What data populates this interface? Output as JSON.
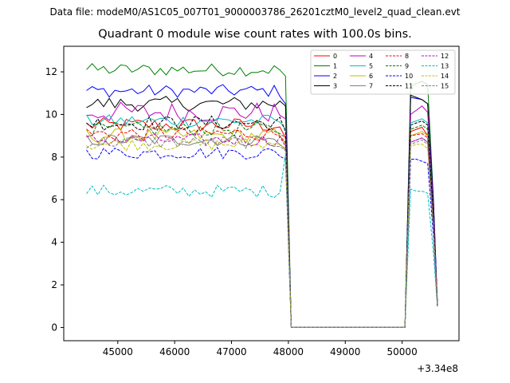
{
  "suptitle": "Data file: modeM0/AS1C05_007T01_9000003786_26201cztM0_level2_quad_clean.evt",
  "chart_data": {
    "type": "line",
    "title": "Quadrant 0 module wise count rates with 100.0s bins.",
    "xlabel": "",
    "ylabel": "",
    "x_offset_label": "+3.34e8",
    "xlim": [
      44050,
      51000
    ],
    "ylim": [
      -0.62,
      13.2
    ],
    "xticks": [
      45000,
      46000,
      47000,
      48000,
      49000,
      50000
    ],
    "xtick_labels": [
      "45000",
      "46000",
      "47000",
      "48000",
      "49000",
      "50000"
    ],
    "yticks": [
      0,
      2,
      4,
      6,
      8,
      10,
      12
    ],
    "ytick_labels": [
      "0",
      "2",
      "4",
      "6",
      "8",
      "10",
      "12"
    ],
    "grid": false,
    "legend_position": "top-right",
    "x_start": 44450,
    "x_step": 100,
    "n_first_segment": 36,
    "gap_start": 48050,
    "gap_end": 50050,
    "x_second_segment": [
      50150,
      50250,
      50350,
      50450,
      50550,
      50620
    ],
    "series": [
      {
        "name": "0",
        "color": "#ff0000",
        "dash": "solid",
        "base": 9.5,
        "noise": 0.35,
        "end": [
          9.2,
          9.3,
          9.4,
          9.0,
          5.0,
          1.2
        ],
        "cliff": 8.9
      },
      {
        "name": "1",
        "color": "#008000",
        "dash": "solid",
        "base": 12.1,
        "noise": 0.3,
        "end": [
          11.3,
          11.45,
          11.55,
          11.4,
          6.0,
          1.1
        ],
        "cliff": 11.8
      },
      {
        "name": "2",
        "color": "#0000ff",
        "dash": "solid",
        "base": 11.1,
        "noise": 0.3,
        "end": [
          10.8,
          10.75,
          10.7,
          10.5,
          6.0,
          1.1
        ],
        "cliff": 10.5
      },
      {
        "name": "3",
        "color": "#000000",
        "dash": "solid",
        "base": 10.5,
        "noise": 0.35,
        "end": [
          10.9,
          10.8,
          10.7,
          10.5,
          5.8,
          1.0
        ],
        "cliff": 10.4
      },
      {
        "name": "4",
        "color": "#bf00bf",
        "dash": "solid",
        "base": 10.1,
        "noise": 0.5,
        "end": [
          10.0,
          10.2,
          10.4,
          10.1,
          5.5,
          1.0
        ],
        "cliff": 9.8
      },
      {
        "name": "5",
        "color": "#00bfbf",
        "dash": "solid",
        "base": 9.7,
        "noise": 0.3,
        "end": [
          9.6,
          9.7,
          9.8,
          9.6,
          5.2,
          1.0
        ],
        "cliff": 9.3
      },
      {
        "name": "6",
        "color": "#bfbf00",
        "dash": "solid",
        "base": 9.0,
        "noise": 0.35,
        "end": [
          9.0,
          9.1,
          9.2,
          9.0,
          4.9,
          1.0
        ],
        "cliff": 8.6
      },
      {
        "name": "7",
        "color": "#808080",
        "dash": "solid",
        "base": 8.8,
        "noise": 0.3,
        "end": [
          8.7,
          8.8,
          8.9,
          8.7,
          4.8,
          1.0
        ],
        "cliff": 8.4
      },
      {
        "name": "8",
        "color": "#ff0000",
        "dash": "dashed",
        "base": 9.1,
        "noise": 0.35,
        "end": [
          9.0,
          9.05,
          9.1,
          8.9,
          4.9,
          1.0
        ],
        "cliff": 8.7
      },
      {
        "name": "9",
        "color": "#008000",
        "dash": "dashed",
        "base": 9.3,
        "noise": 0.35,
        "end": [
          9.3,
          9.4,
          9.5,
          9.3,
          5.1,
          1.0
        ],
        "cliff": 8.9
      },
      {
        "name": "10",
        "color": "#0000ff",
        "dash": "dashed",
        "base": 8.2,
        "noise": 0.3,
        "end": [
          7.9,
          7.9,
          7.8,
          7.7,
          4.3,
          1.0
        ],
        "cliff": 7.9
      },
      {
        "name": "11",
        "color": "#000000",
        "dash": "dashed",
        "base": 9.6,
        "noise": 0.35,
        "end": [
          9.5,
          9.6,
          9.7,
          9.5,
          5.2,
          1.0
        ],
        "cliff": 9.2
      },
      {
        "name": "12",
        "color": "#bf00bf",
        "dash": "dashed",
        "base": 8.8,
        "noise": 0.3,
        "end": [
          8.7,
          8.8,
          8.9,
          8.7,
          4.8,
          1.0
        ],
        "cliff": 8.5
      },
      {
        "name": "13",
        "color": "#00bfbf",
        "dash": "dashed",
        "base": 6.4,
        "noise": 0.3,
        "end": [
          6.5,
          6.4,
          6.4,
          6.3,
          3.5,
          1.0
        ],
        "cliff": 8.1
      },
      {
        "name": "14",
        "color": "#bfbf00",
        "dash": "dashed",
        "base": 8.6,
        "noise": 0.3,
        "end": [
          8.5,
          8.6,
          8.6,
          8.4,
          4.6,
          1.0
        ],
        "cliff": 8.3
      },
      {
        "name": "15",
        "color": "#808080",
        "dash": "dashed",
        "base": 8.7,
        "noise": 0.3,
        "end": [
          8.6,
          8.7,
          8.8,
          8.6,
          4.7,
          1.0
        ],
        "cliff": 8.3
      }
    ]
  }
}
